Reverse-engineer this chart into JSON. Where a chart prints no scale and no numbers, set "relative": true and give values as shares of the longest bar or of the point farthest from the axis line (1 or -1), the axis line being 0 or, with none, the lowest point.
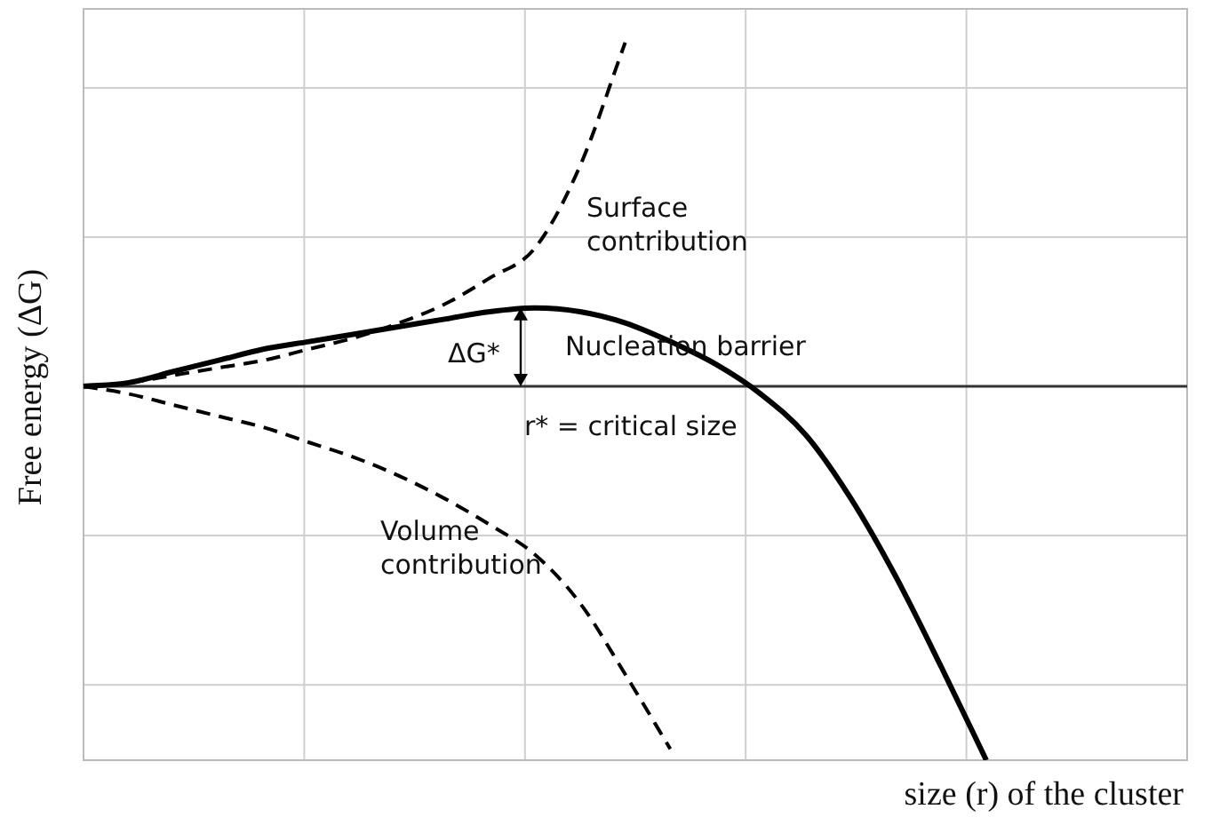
{
  "chart_data": {
    "type": "line",
    "relative": true,
    "xlabel": "size (r) of the cluster",
    "ylabel": "Free energy (ΔG)",
    "categories": [
      null,
      null,
      null,
      null,
      null,
      null,
      null,
      null,
      null,
      null,
      null,
      null,
      null,
      null,
      null,
      null,
      null,
      null,
      null,
      null,
      null
    ],
    "series": [
      {
        "color": "#000000",
        "line_style": "dashed",
        "values": [
          0,
          0.01,
          0.03,
          0.05,
          0.07,
          0.1,
          0.13,
          0.17,
          0.22,
          0.29,
          0.37,
          0.59,
          0.92,
          null,
          null,
          null,
          null,
          null,
          null,
          null,
          null
        ]
      },
      {
        "color": "#000000",
        "line_style": "dashed",
        "values": [
          0,
          -0.02,
          -0.05,
          -0.08,
          -0.11,
          -0.15,
          -0.19,
          -0.24,
          -0.3,
          -0.37,
          -0.45,
          -0.58,
          -0.77,
          -0.97,
          null,
          null,
          null,
          null,
          null,
          null,
          null
        ]
      },
      {
        "color": "#000000",
        "line_style": "solid",
        "values": [
          0,
          0.01,
          0.04,
          0.07,
          0.1,
          0.12,
          0.14,
          0.16,
          0.18,
          0.2,
          0.21,
          0.2,
          0.17,
          0.12,
          0.06,
          -0.02,
          -0.13,
          -0.3,
          -0.51,
          -0.75,
          -1
        ]
      }
    ],
    "annotations": [
      "Surface\ncontribution",
      "ΔG*",
      "Nucleation barrier",
      "r* = critical size",
      "Volume\ncontribution"
    ],
    "grid": true,
    "legend": false,
    "marker": "none"
  }
}
